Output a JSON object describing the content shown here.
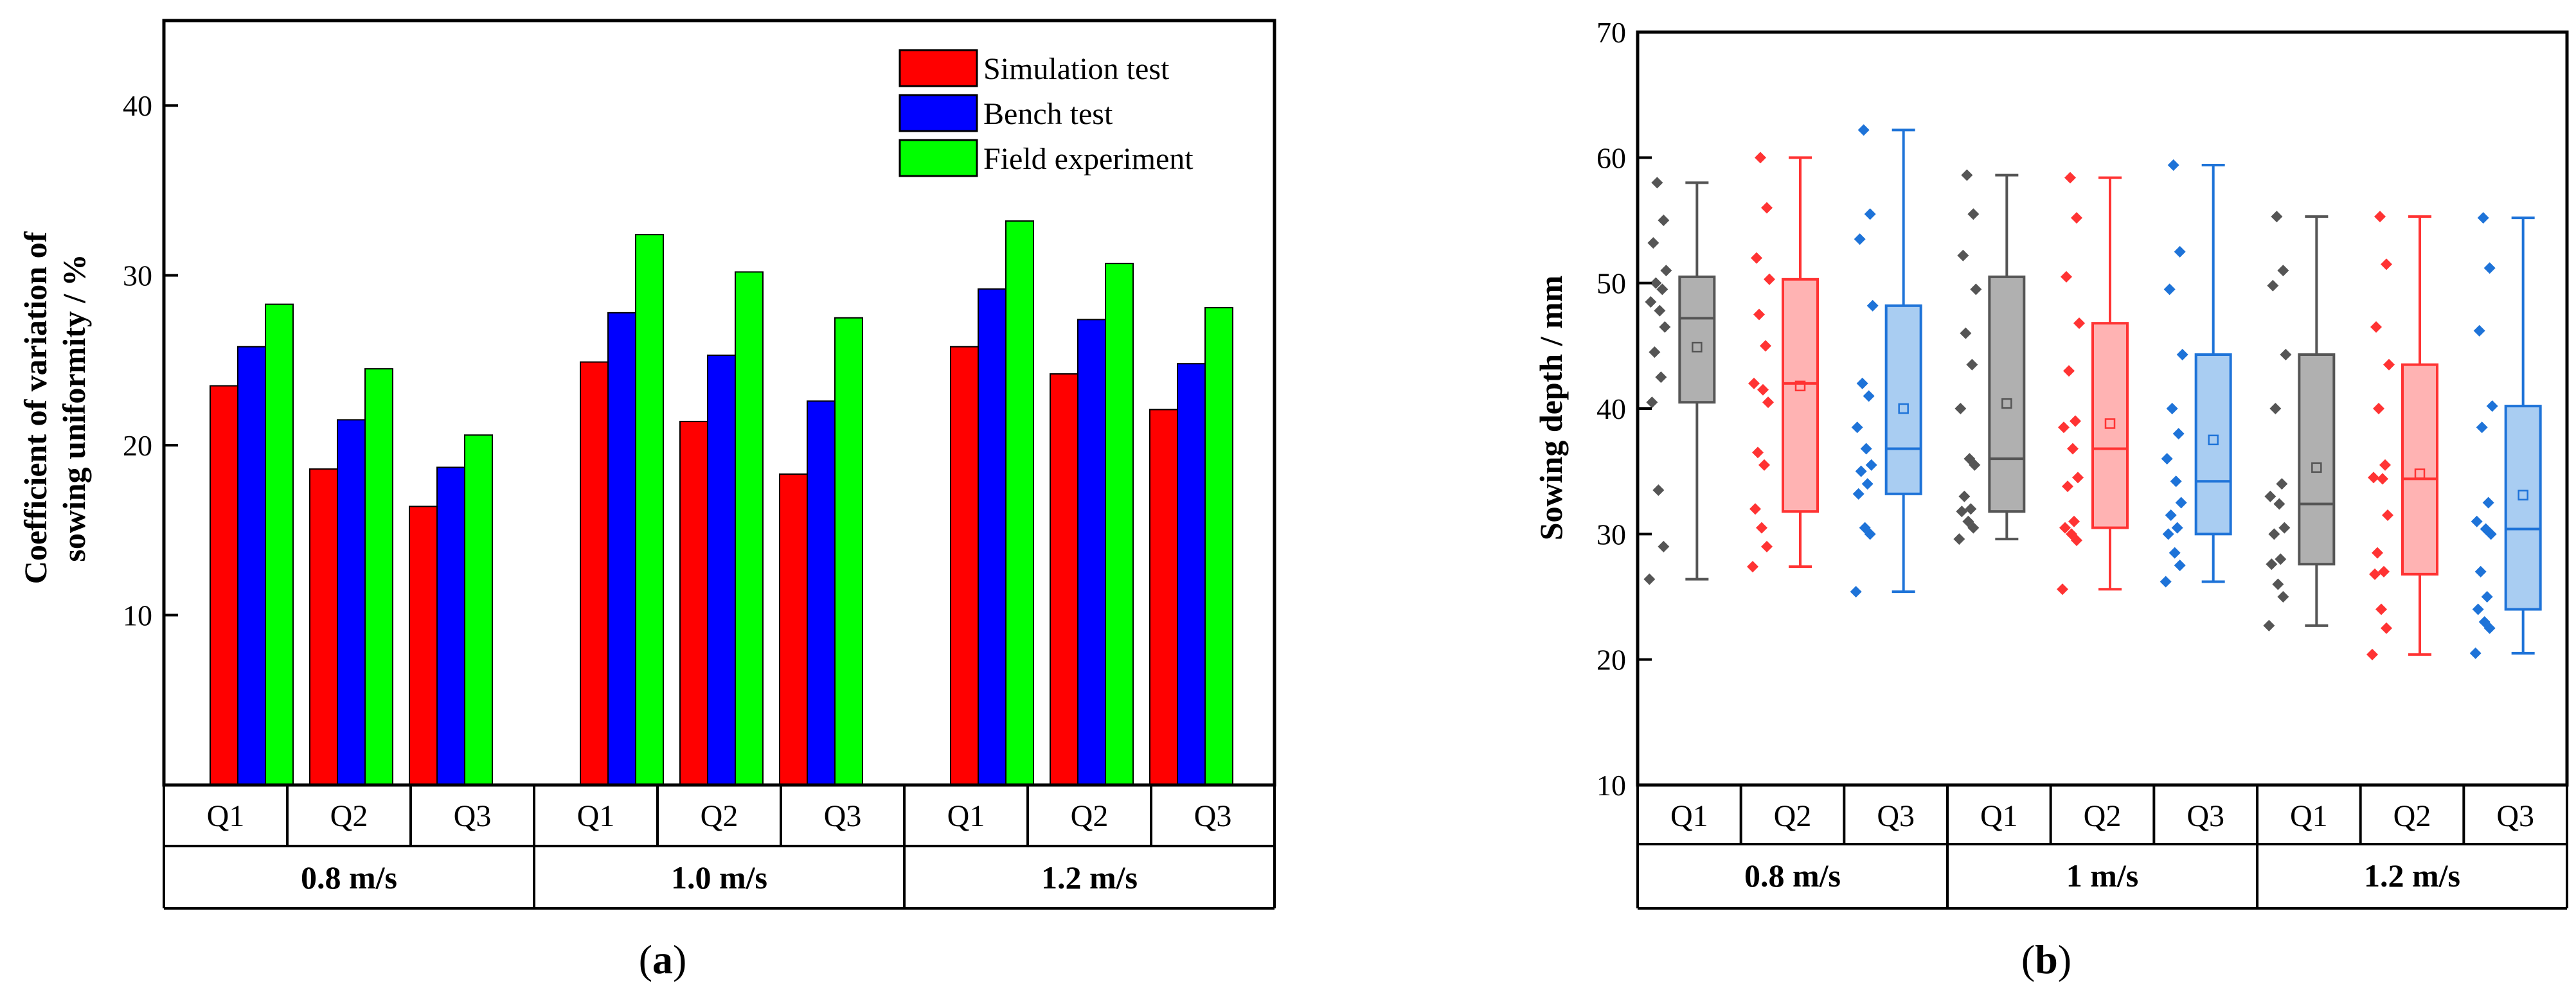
{
  "chart_data": [
    {
      "type": "bar",
      "panel_label": "a",
      "ylabel_line1": "Coefficient of variation of",
      "ylabel_line2": "sowing uniformity / %",
      "ylim": [
        0,
        45
      ],
      "yticks": [
        10,
        20,
        30,
        40
      ],
      "grid": false,
      "legend_position": "top-right",
      "groups": [
        {
          "label": "0.8 m/s",
          "categories": [
            "Q1",
            "Q2",
            "Q3"
          ]
        },
        {
          "label": "1.0 m/s",
          "categories": [
            "Q1",
            "Q2",
            "Q3"
          ]
        },
        {
          "label": "1.2 m/s",
          "categories": [
            "Q1",
            "Q2",
            "Q3"
          ]
        }
      ],
      "series": [
        {
          "name": "Simulation test",
          "color": "#ff0000",
          "values": [
            23.5,
            18.6,
            16.4,
            24.9,
            21.4,
            18.3,
            25.8,
            24.2,
            22.1
          ]
        },
        {
          "name": "Bench test",
          "color": "#0000ff",
          "values": [
            25.8,
            21.5,
            18.7,
            27.8,
            25.3,
            22.6,
            29.2,
            27.4,
            24.8
          ]
        },
        {
          "name": "Field experiment",
          "color": "#00ff00",
          "values": [
            28.3,
            24.5,
            20.6,
            32.4,
            30.2,
            27.5,
            33.2,
            30.7,
            28.1
          ]
        }
      ]
    },
    {
      "type": "box",
      "panel_label": "b",
      "ylabel": "Sowing depth / mm",
      "ylim": [
        10,
        70
      ],
      "yticks": [
        10,
        20,
        30,
        40,
        50,
        60,
        70
      ],
      "grid": false,
      "groups": [
        {
          "label": "0.8 m/s",
          "categories": [
            "Q1",
            "Q2",
            "Q3"
          ]
        },
        {
          "label": "1 m/s",
          "categories": [
            "Q1",
            "Q2",
            "Q3"
          ]
        },
        {
          "label": "1.2 m/s",
          "categories": [
            "Q1",
            "Q2",
            "Q3"
          ]
        }
      ],
      "boxes": [
        {
          "category": "Q1",
          "group": "0.8 m/s",
          "color": "#555555",
          "fill": "#b0b0b0",
          "min": 26.4,
          "q1": 40.5,
          "median": 47.2,
          "mean": 44.9,
          "q3": 50.5,
          "max": 58.0,
          "points": [
            58.0,
            55.0,
            53.2,
            51.0,
            50.0,
            49.5,
            48.5,
            47.8,
            46.5,
            44.5,
            42.5,
            40.5,
            33.5,
            29.0,
            26.4
          ]
        },
        {
          "category": "Q2",
          "group": "0.8 m/s",
          "color": "#ff3333",
          "fill": "#ffb3b3",
          "min": 27.4,
          "q1": 31.8,
          "median": 42.0,
          "mean": 41.8,
          "q3": 50.3,
          "max": 60.0,
          "points": [
            60.0,
            56.0,
            52.0,
            50.3,
            47.5,
            45.0,
            42.0,
            41.5,
            40.5,
            36.5,
            35.5,
            32.0,
            30.5,
            29.0,
            27.4
          ]
        },
        {
          "category": "Q3",
          "group": "0.8 m/s",
          "color": "#1e73d8",
          "fill": "#a9cdf2",
          "min": 25.4,
          "q1": 33.2,
          "median": 36.8,
          "mean": 40.0,
          "q3": 48.2,
          "max": 62.2,
          "points": [
            62.2,
            55.5,
            53.5,
            48.2,
            42.0,
            41.0,
            38.5,
            36.8,
            35.5,
            35.0,
            34.0,
            33.2,
            30.5,
            30.0,
            25.4
          ]
        },
        {
          "category": "Q1",
          "group": "1 m/s",
          "color": "#555555",
          "fill": "#b0b0b0",
          "min": 29.6,
          "q1": 31.8,
          "median": 36.0,
          "mean": 40.4,
          "q3": 50.5,
          "max": 58.6,
          "points": [
            58.6,
            55.5,
            52.2,
            49.5,
            46.0,
            43.5,
            40.0,
            36.0,
            35.5,
            33.0,
            32.0,
            31.8,
            31.0,
            30.5,
            29.6
          ]
        },
        {
          "category": "Q2",
          "group": "1 m/s",
          "color": "#ff3333",
          "fill": "#ffb3b3",
          "min": 25.6,
          "q1": 30.5,
          "median": 36.8,
          "mean": 38.8,
          "q3": 46.8,
          "max": 58.4,
          "points": [
            58.4,
            55.2,
            50.5,
            46.8,
            43.0,
            39.0,
            38.5,
            36.8,
            34.5,
            33.8,
            31.0,
            30.5,
            30.0,
            29.5,
            25.6
          ]
        },
        {
          "category": "Q3",
          "group": "1 m/s",
          "color": "#1e73d8",
          "fill": "#a9cdf2",
          "min": 26.2,
          "q1": 30.0,
          "median": 34.2,
          "mean": 37.5,
          "q3": 44.3,
          "max": 59.4,
          "points": [
            59.4,
            52.5,
            49.5,
            44.3,
            40.0,
            38.0,
            36.0,
            34.2,
            32.5,
            31.5,
            30.5,
            30.0,
            28.5,
            27.5,
            26.2
          ]
        },
        {
          "category": "Q1",
          "group": "1.2 m/s",
          "color": "#555555",
          "fill": "#b0b0b0",
          "min": 22.7,
          "q1": 27.6,
          "median": 32.4,
          "mean": 35.3,
          "q3": 44.3,
          "max": 55.3,
          "points": [
            55.3,
            51.0,
            49.8,
            44.3,
            40.0,
            34.0,
            33.0,
            32.4,
            30.5,
            30.0,
            28.0,
            27.6,
            26.0,
            25.0,
            22.7
          ]
        },
        {
          "category": "Q2",
          "group": "1.2 m/s",
          "color": "#ff3333",
          "fill": "#ffb3b3",
          "min": 20.4,
          "q1": 26.8,
          "median": 34.4,
          "mean": 34.8,
          "q3": 43.5,
          "max": 55.3,
          "points": [
            55.3,
            51.5,
            46.5,
            43.5,
            40.0,
            35.5,
            34.5,
            34.4,
            31.5,
            28.5,
            27.0,
            26.8,
            24.0,
            22.5,
            20.4
          ]
        },
        {
          "category": "Q3",
          "group": "1.2 m/s",
          "color": "#1e73d8",
          "fill": "#a9cdf2",
          "min": 20.5,
          "q1": 24.0,
          "median": 30.4,
          "mean": 33.1,
          "q3": 40.2,
          "max": 55.2,
          "points": [
            55.2,
            51.2,
            46.2,
            40.2,
            38.5,
            32.5,
            31.0,
            30.4,
            30.0,
            27.0,
            25.0,
            24.0,
            23.0,
            22.5,
            20.5
          ]
        }
      ]
    }
  ]
}
